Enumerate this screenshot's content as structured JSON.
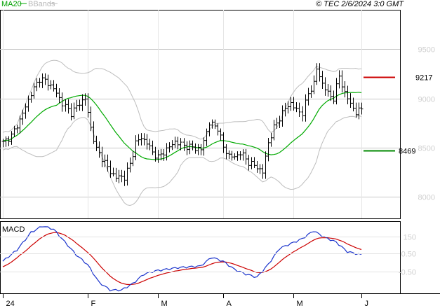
{
  "header": {
    "ma_label": "MA20",
    "bb_label": "BBands",
    "copyright": "© TEC 2/6/2024 3:0 GMT"
  },
  "levels": {
    "resistance": {
      "value": 9217,
      "label": "9217",
      "color": "#cc0000"
    },
    "support": {
      "value": 8469,
      "label": "8469",
      "color": "#008800"
    }
  },
  "colors": {
    "price": "#000000",
    "ma": "#00aa00",
    "bbands": "#bdbdbd",
    "macd": "#1a33cc",
    "signal": "#cc0000",
    "grid": "#c8c8c8",
    "frame": "#000000"
  },
  "macd_panel": {
    "title": "MACD",
    "tick_labels": [
      "150",
      "0.50",
      "-0.50"
    ]
  },
  "chart_data": {
    "type": "line",
    "price": {
      "title": "",
      "ylim": [
        7780,
        9900
      ],
      "y_ticks": [
        8000,
        8500,
        9000,
        9500
      ],
      "y_tick_labels": [
        "8000",
        "8500",
        "9000",
        "9500"
      ],
      "x_tick_labels": [
        "24",
        "F",
        "M",
        "A",
        "M",
        "J"
      ],
      "x_tick_index": [
        0,
        30,
        55,
        78,
        103,
        127
      ],
      "n_bars": 128,
      "close_anchors": [
        [
          0,
          8550
        ],
        [
          3,
          8620
        ],
        [
          6,
          8780
        ],
        [
          10,
          9050
        ],
        [
          13,
          9200
        ],
        [
          15,
          9180
        ],
        [
          18,
          9100
        ],
        [
          21,
          8950
        ],
        [
          24,
          8850
        ],
        [
          27,
          8950
        ],
        [
          29,
          9000
        ],
        [
          31,
          8700
        ],
        [
          33,
          8480
        ],
        [
          36,
          8350
        ],
        [
          38,
          8250
        ],
        [
          40,
          8200
        ],
        [
          43,
          8200
        ],
        [
          45,
          8330
        ],
        [
          47,
          8550
        ],
        [
          49,
          8600
        ],
        [
          51,
          8550
        ],
        [
          53,
          8450
        ],
        [
          55,
          8400
        ],
        [
          58,
          8480
        ],
        [
          61,
          8560
        ],
        [
          64,
          8520
        ],
        [
          67,
          8500
        ],
        [
          70,
          8480
        ],
        [
          73,
          8750
        ],
        [
          76,
          8700
        ],
        [
          78,
          8500
        ],
        [
          80,
          8420
        ],
        [
          82,
          8400
        ],
        [
          84,
          8450
        ],
        [
          87,
          8350
        ],
        [
          90,
          8300
        ],
        [
          92,
          8250
        ],
        [
          94,
          8550
        ],
        [
          96,
          8700
        ],
        [
          98,
          8800
        ],
        [
          100,
          8900
        ],
        [
          102,
          8950
        ],
        [
          104,
          8880
        ],
        [
          106,
          8850
        ],
        [
          108,
          9050
        ],
        [
          110,
          9150
        ],
        [
          111,
          9300
        ],
        [
          113,
          9150
        ],
        [
          115,
          9050
        ],
        [
          117,
          9000
        ],
        [
          119,
          9230
        ],
        [
          121,
          9050
        ],
        [
          123,
          8950
        ],
        [
          125,
          8850
        ],
        [
          127,
          8900
        ]
      ],
      "bands_note": "MA20 with Bollinger Bands (20, 2)"
    },
    "macd": {
      "ylim": [
        -1.3,
        3.2
      ],
      "zero": 0,
      "anchors": [
        [
          0,
          0.7
        ],
        [
          5,
          1.4
        ],
        [
          10,
          2.5
        ],
        [
          14,
          2.9
        ],
        [
          18,
          2.7
        ],
        [
          22,
          1.9
        ],
        [
          26,
          1.1
        ],
        [
          30,
          0.5
        ],
        [
          34,
          -0.6
        ],
        [
          38,
          -1.1
        ],
        [
          42,
          -1.1
        ],
        [
          46,
          -0.7
        ],
        [
          50,
          -0.1
        ],
        [
          54,
          0.1
        ],
        [
          58,
          0.2
        ],
        [
          62,
          0.3
        ],
        [
          66,
          0.35
        ],
        [
          70,
          0.4
        ],
        [
          74,
          0.95
        ],
        [
          78,
          0.7
        ],
        [
          82,
          0.2
        ],
        [
          86,
          -0.1
        ],
        [
          90,
          -0.3
        ],
        [
          94,
          0.5
        ],
        [
          98,
          1.5
        ],
        [
          102,
          1.8
        ],
        [
          106,
          2.1
        ],
        [
          110,
          2.6
        ],
        [
          114,
          2.2
        ],
        [
          118,
          1.9
        ],
        [
          122,
          1.3
        ],
        [
          127,
          1.1
        ]
      ]
    }
  }
}
